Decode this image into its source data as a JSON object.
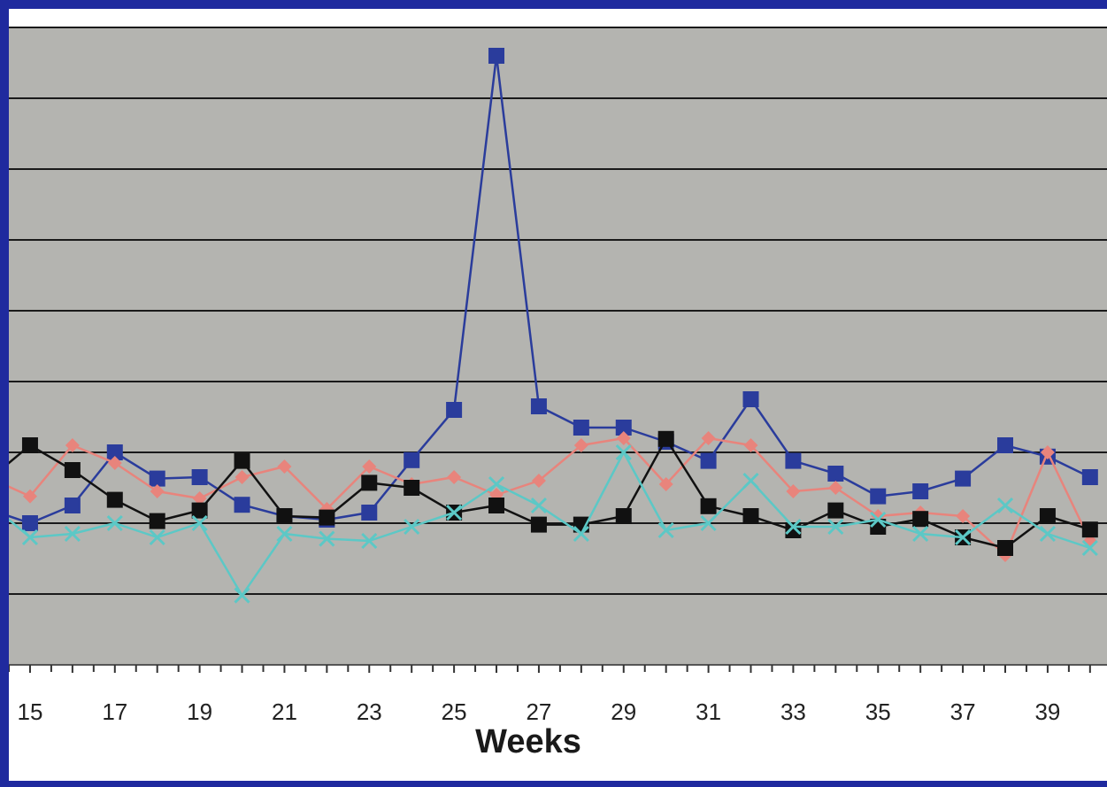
{
  "chart_data": {
    "type": "line",
    "title": "",
    "xlabel": "Weeks",
    "ylabel": "",
    "x": [
      14,
      15,
      16,
      17,
      18,
      19,
      20,
      21,
      22,
      23,
      24,
      25,
      26,
      27,
      28,
      29,
      30,
      31,
      32,
      33,
      34,
      35,
      36,
      37,
      38,
      39,
      40
    ],
    "x_tick_labels": [
      "15",
      "17",
      "19",
      "21",
      "23",
      "25",
      "27",
      "29",
      "31",
      "33",
      "35",
      "37",
      "39"
    ],
    "xlim": [
      14.5,
      40.4
    ],
    "ylim": [
      0,
      9
    ],
    "y_gridlines": [
      1,
      2,
      3,
      4,
      5,
      6,
      7,
      8,
      9
    ],
    "grid": true,
    "series": [
      {
        "color": "#2a3c9c",
        "marker": "square",
        "values": [
          2.2,
          2.0,
          2.25,
          3.0,
          2.63,
          2.65,
          2.26,
          2.1,
          2.05,
          2.15,
          2.89,
          3.6,
          8.6,
          3.65,
          3.35,
          3.35,
          3.15,
          2.88,
          3.75,
          2.88,
          2.7,
          2.38,
          2.45,
          2.63,
          3.1,
          2.94,
          2.65
        ]
      },
      {
        "color": "#e8847c",
        "marker": "diamond",
        "values": [
          2.65,
          2.38,
          3.1,
          2.85,
          2.45,
          2.35,
          2.65,
          2.8,
          2.2,
          2.8,
          2.55,
          2.65,
          2.4,
          2.6,
          3.1,
          3.2,
          2.55,
          3.2,
          3.1,
          2.45,
          2.5,
          2.1,
          2.15,
          2.1,
          1.55,
          3.0,
          1.75
        ]
      },
      {
        "color": "#111111",
        "marker": "square",
        "values": [
          2.6,
          3.1,
          2.75,
          2.33,
          2.03,
          2.18,
          2.88,
          2.1,
          2.08,
          2.57,
          2.5,
          2.15,
          2.25,
          1.98,
          1.98,
          2.1,
          3.19,
          2.24,
          2.1,
          1.9,
          2.18,
          1.95,
          2.06,
          1.8,
          1.65,
          2.1,
          1.91
        ]
      },
      {
        "color": "#5cc8c6",
        "marker": "x",
        "values": [
          2.3,
          1.8,
          1.85,
          2.0,
          1.8,
          2.0,
          0.98,
          1.85,
          1.78,
          1.75,
          1.95,
          2.15,
          2.55,
          2.25,
          1.85,
          3.0,
          1.9,
          2.0,
          2.6,
          1.95,
          1.95,
          2.05,
          1.85,
          1.8,
          2.25,
          1.85,
          1.65
        ]
      }
    ]
  }
}
